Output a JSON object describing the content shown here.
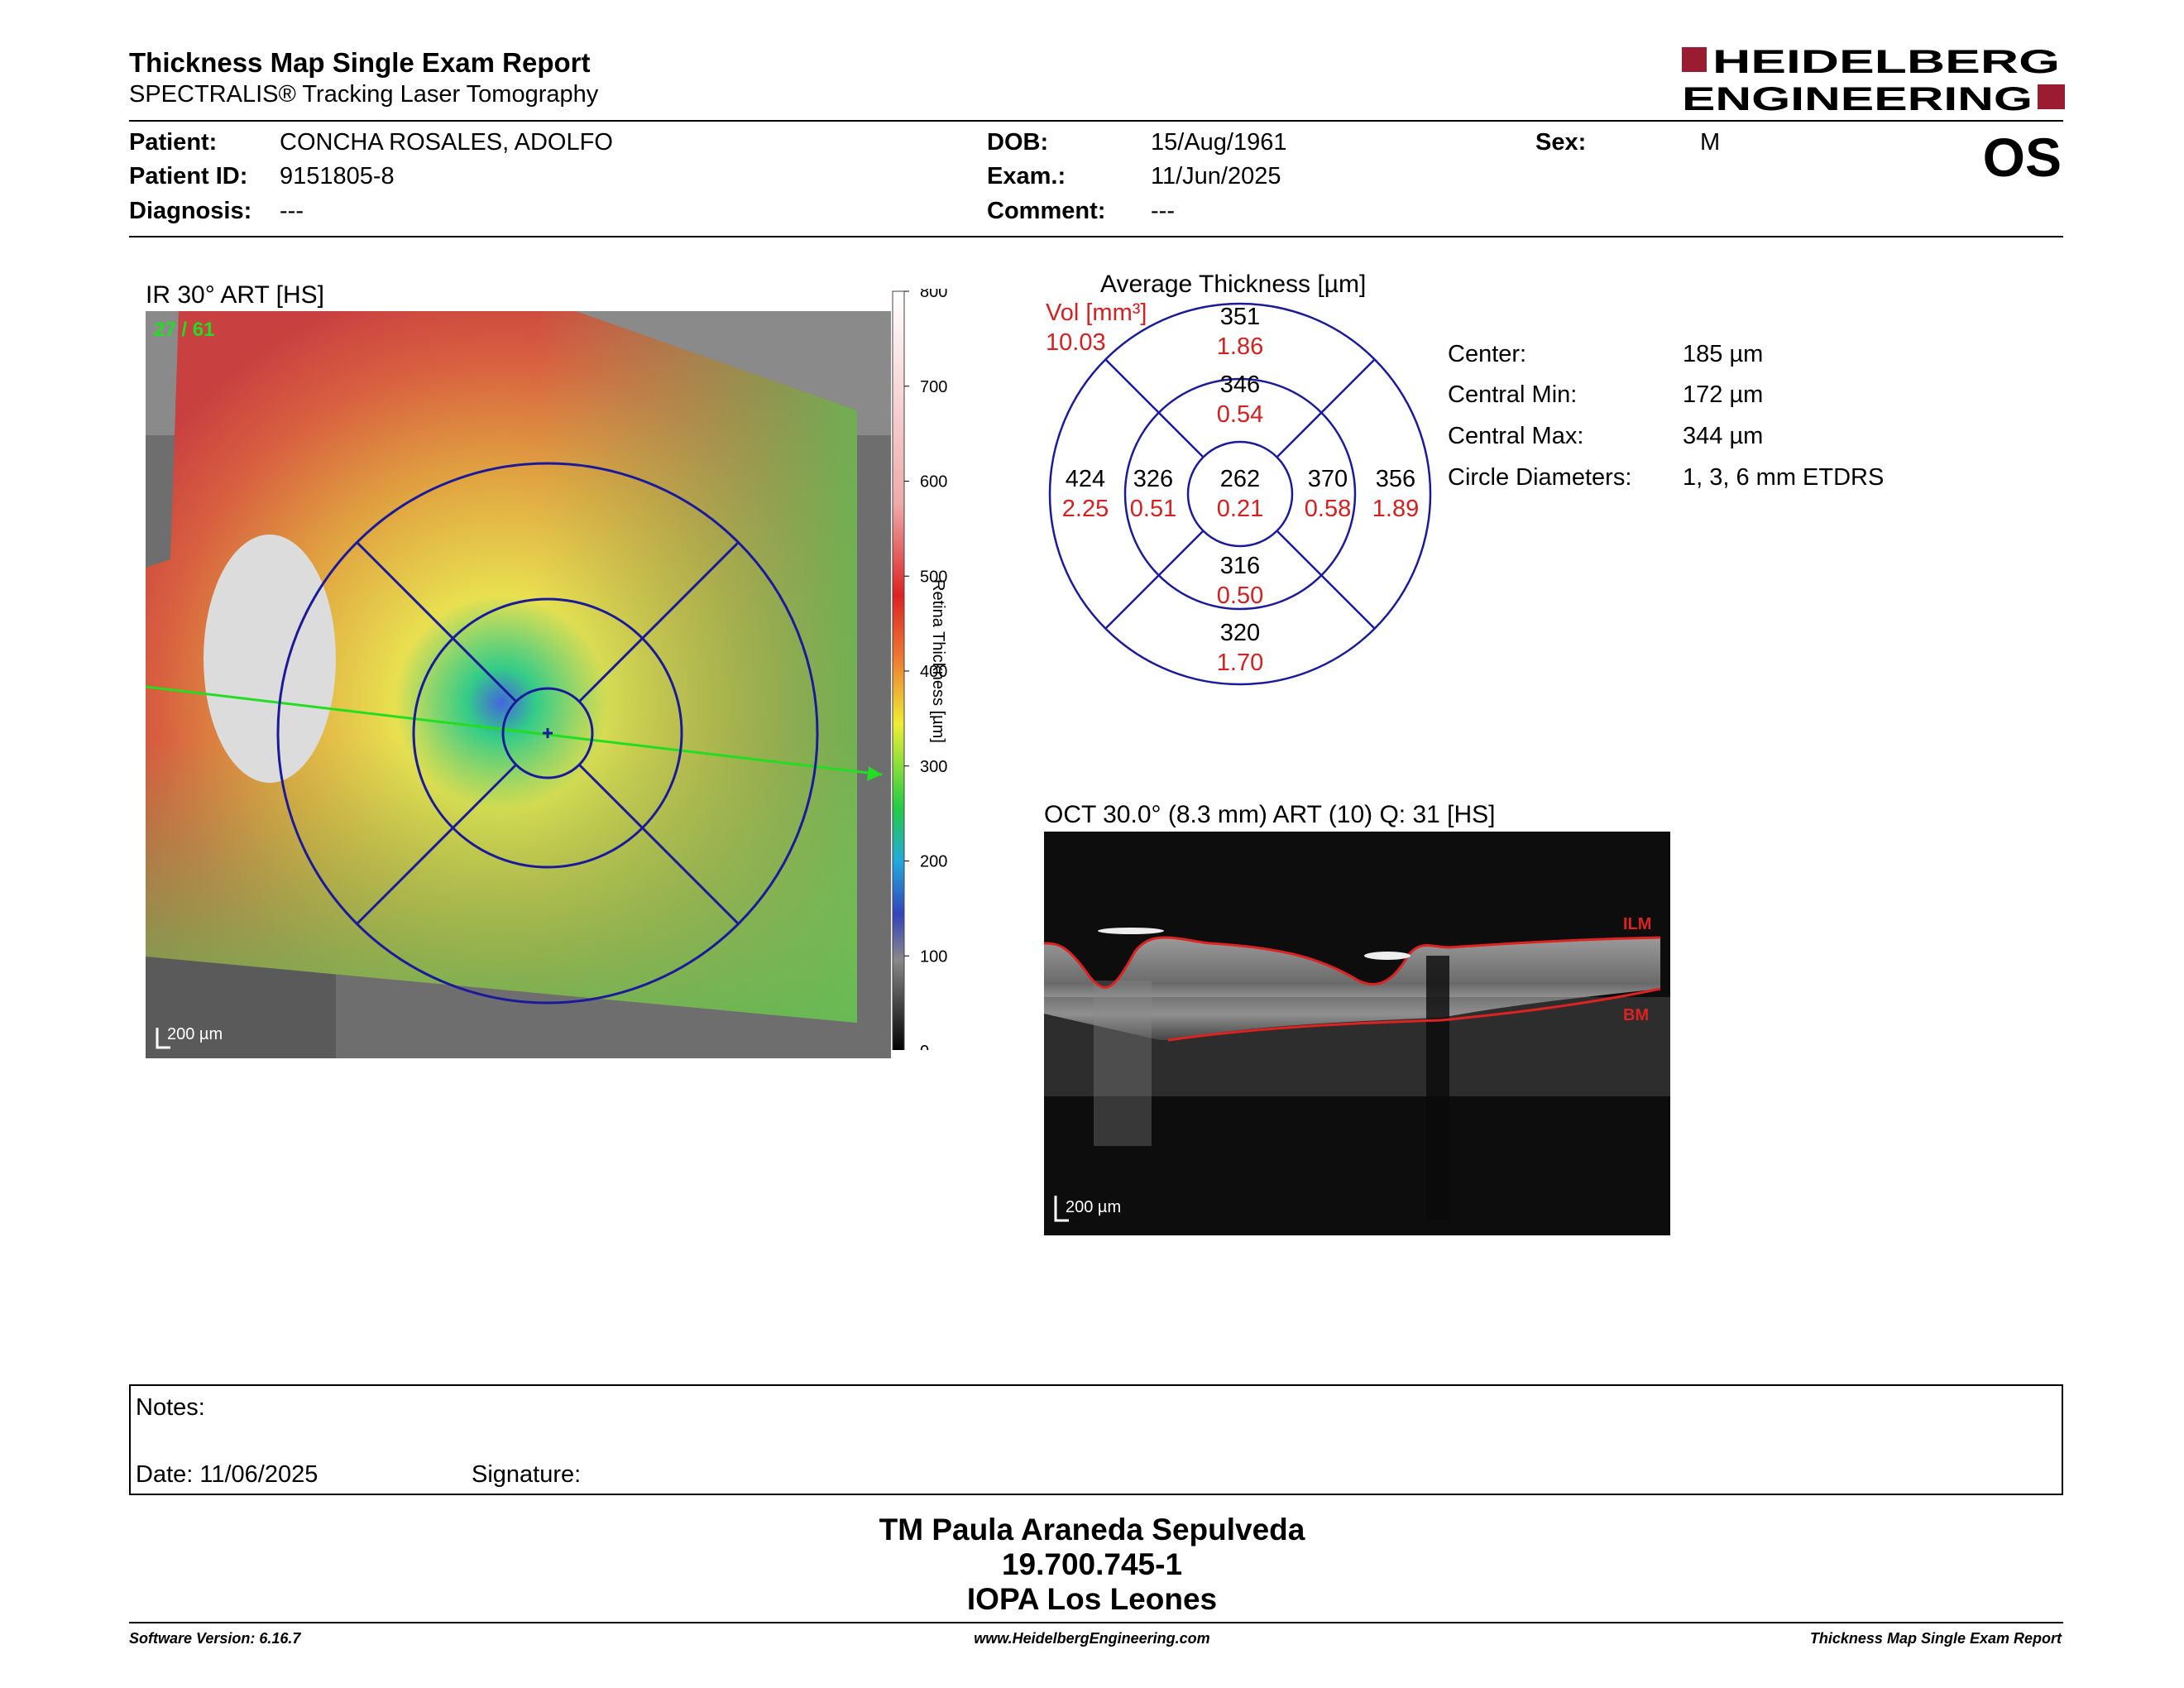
{
  "header": {
    "title": "Thickness Map Single Exam Report",
    "subtitle": "SPECTRALIS® Tracking Laser Tomography",
    "logo_line1": "HEIDELBERG",
    "logo_line2": "ENGINEERING",
    "eye": "OS"
  },
  "patient": {
    "patient_label": "Patient:",
    "patient_value": "CONCHA ROSALES, ADOLFO",
    "id_label": "Patient ID:",
    "id_value": "9151805-8",
    "diagnosis_label": "Diagnosis:",
    "diagnosis_value": "---",
    "dob_label": "DOB:",
    "dob_value": "15/Aug/1961",
    "exam_label": "Exam.:",
    "exam_value": "11/Jun/2025",
    "comment_label": "Comment:",
    "comment_value": "---",
    "sex_label": "Sex:",
    "sex_value": "M"
  },
  "fundus": {
    "title": "IR 30° ART [HS]",
    "frame": "27 / 61",
    "scale": "200 µm",
    "colorbar_ticks": [
      "800",
      "700",
      "600",
      "500",
      "400",
      "300",
      "200",
      "100",
      "0"
    ],
    "colorbar_label": "Retina  Thickness [µm]"
  },
  "etdrs": {
    "title": "Average Thickness [µm]",
    "vol_label": "Vol [mm³]",
    "vol_value": "10.03",
    "sectors": {
      "outer_top": {
        "thickness": "351",
        "volume": "1.86"
      },
      "inner_top": {
        "thickness": "346",
        "volume": "0.54"
      },
      "outer_left": {
        "thickness": "424",
        "volume": "2.25"
      },
      "inner_left": {
        "thickness": "326",
        "volume": "0.51"
      },
      "center": {
        "thickness": "262",
        "volume": "0.21"
      },
      "inner_right": {
        "thickness": "370",
        "volume": "0.58"
      },
      "outer_right": {
        "thickness": "356",
        "volume": "1.89"
      },
      "inner_bottom": {
        "thickness": "316",
        "volume": "0.50"
      },
      "outer_bottom": {
        "thickness": "320",
        "volume": "1.70"
      }
    },
    "colors": {
      "circle": "#1a1a9a",
      "volume_text": "#d42020"
    }
  },
  "stats": {
    "center_label": "Center:",
    "center_value": "185 µm",
    "min_label": "Central Min:",
    "min_value": "172 µm",
    "max_label": "Central Max:",
    "max_value": "344 µm",
    "diam_label": "Circle Diameters:",
    "diam_value": "1, 3, 6 mm ETDRS"
  },
  "oct": {
    "title": "OCT 30.0° (8.3 mm) ART (10) Q: 31 [HS]",
    "ilm_label": "ILM",
    "bm_label": "BM",
    "scale": "200 µm"
  },
  "notes": {
    "notes_label": "Notes:",
    "date_label": "Date: 11/06/2025",
    "signature_label": "Signature:"
  },
  "signature_block": {
    "name": "TM Paula Araneda Sepulveda",
    "id": "19.700.745-1",
    "institution": "IOPA Los Leones"
  },
  "footer": {
    "software": "Software Version: 6.16.7",
    "website": "www.HeidelbergEngineering.com",
    "report": "Thickness Map Single Exam Report"
  },
  "colors": {
    "brand": "#9b1b30",
    "scan_line": "#22dd22",
    "ilm": "#dd2222"
  }
}
